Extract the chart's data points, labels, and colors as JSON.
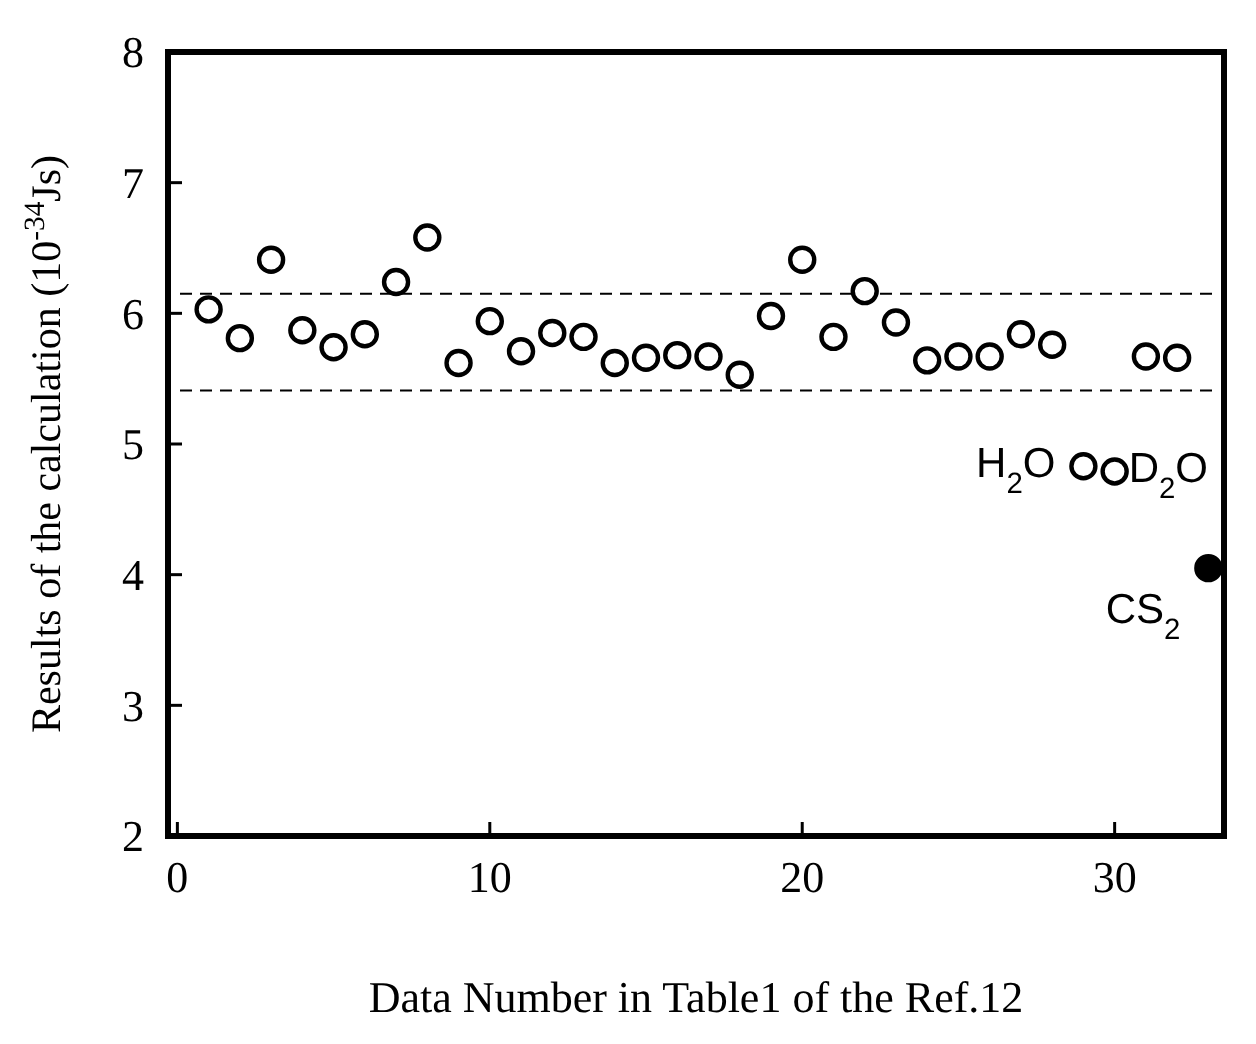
{
  "chart_data": {
    "type": "scatter",
    "xlabel": "Data Number in Table1 of the Ref.12",
    "ylabel": "Results of the calculation (10$^{-34}$Js)",
    "xlim": [
      -0.3,
      33.5
    ],
    "xticks": [
      0,
      10,
      20,
      30
    ],
    "ylim": [
      2,
      8
    ],
    "yticks": [
      2,
      3,
      4,
      5,
      6,
      7,
      8
    ],
    "marker": "circle",
    "grid": false,
    "series": [
      {
        "color": "#ffffff",
        "x": [
          1,
          2,
          3,
          4,
          5,
          6,
          7,
          8,
          9,
          10,
          11,
          12,
          13,
          14,
          15,
          16,
          17,
          18,
          19,
          20,
          21,
          22,
          23,
          24,
          25,
          26,
          27,
          28,
          29,
          30,
          31,
          32
        ],
        "values": [
          6.03,
          5.81,
          6.41,
          5.87,
          5.74,
          5.84,
          6.24,
          6.58,
          5.62,
          5.94,
          5.71,
          5.85,
          5.82,
          5.62,
          5.66,
          5.68,
          5.67,
          5.53,
          5.98,
          6.41,
          5.82,
          6.17,
          5.93,
          5.64,
          5.67,
          5.67,
          5.84,
          5.76,
          4.83,
          4.79,
          5.67,
          5.66
        ]
      },
      {
        "color": "#000000",
        "x": [
          33
        ],
        "values": [
          4.05
        ]
      }
    ],
    "ref_lines": [
      {
        "axis": "y",
        "value": 6.15,
        "line_style": "dashed"
      },
      {
        "axis": "y",
        "value": 5.41,
        "line_style": "dashed"
      }
    ],
    "annotations": [
      {
        "text": "H$_{2}$O",
        "x": 29,
        "y": 4.83
      },
      {
        "text": "D$_{2}$O",
        "x": 30,
        "y": 4.79
      },
      {
        "text": "CS$_{2}$",
        "x": 33,
        "y": 4.05
      }
    ]
  }
}
